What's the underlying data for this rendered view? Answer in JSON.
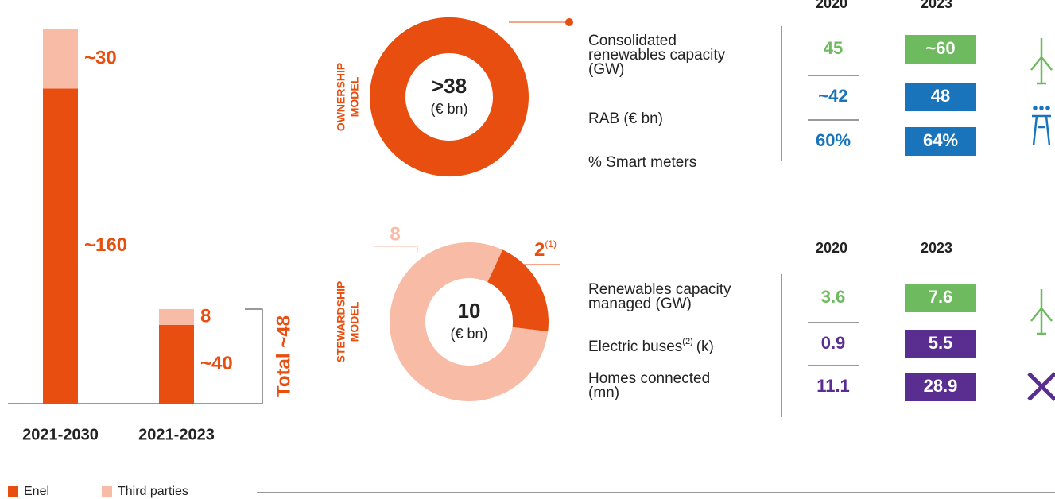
{
  "chart_data": [
    {
      "type": "bar",
      "stacked": true,
      "categories": [
        "2021-2030",
        "2021-2023"
      ],
      "series": [
        {
          "name": "Enel",
          "color": "#e84e0f",
          "values": [
            160,
            40
          ],
          "value_labels": [
            "~160",
            "~40"
          ]
        },
        {
          "name": "Third parties",
          "color": "#f7bba6",
          "values": [
            30,
            8
          ],
          "value_labels": [
            "~30",
            "8"
          ]
        }
      ],
      "ylim": [
        0,
        190
      ],
      "annotation": "Total ~48"
    },
    {
      "type": "donut",
      "title": [
        "OWNERSHIP",
        "MODEL"
      ],
      "center": ">38",
      "unit": "(€ bn)",
      "values": [
        38
      ],
      "colors": [
        "#e84e0f"
      ]
    },
    {
      "type": "donut",
      "title": [
        "STEWARDSHIP",
        "MODEL"
      ],
      "center": "10",
      "unit": "(€ bn)",
      "values": [
        8,
        2
      ],
      "colors": [
        "#f7bba6",
        "#e84e0f"
      ],
      "footnotes": [
        null,
        "(1)"
      ]
    }
  ],
  "kpi_tables": [
    {
      "columns": [
        "2020",
        "2023"
      ],
      "rows": [
        {
          "label": [
            "Consolidated",
            "renewables capacity",
            "(GW)"
          ],
          "values": [
            "45",
            "~60"
          ],
          "color": "#6dbb5e"
        },
        {
          "label": [
            "RAB (€ bn)"
          ],
          "values": [
            "~42",
            "48"
          ],
          "color": "#1a74bb"
        },
        {
          "label": [
            "% Smart meters"
          ],
          "values": [
            "60%",
            "64%"
          ],
          "color": "#1a74bb"
        }
      ]
    },
    {
      "columns": [
        "2020",
        "2023"
      ],
      "rows": [
        {
          "label": [
            "Renewables capacity",
            "managed (GW)"
          ],
          "values": [
            "3.6",
            "7.6"
          ],
          "color": "#6dbb5e"
        },
        {
          "label": [
            "Electric buses"
          ],
          "footnote": "(2)",
          "unit": "(k)",
          "values": [
            "0.9",
            "5.5"
          ],
          "color": "#5a2d91"
        },
        {
          "label": [
            "Homes connected",
            "(mn)"
          ],
          "values": [
            "11.1",
            "28.9"
          ],
          "color": "#5a2d91"
        }
      ]
    }
  ]
}
